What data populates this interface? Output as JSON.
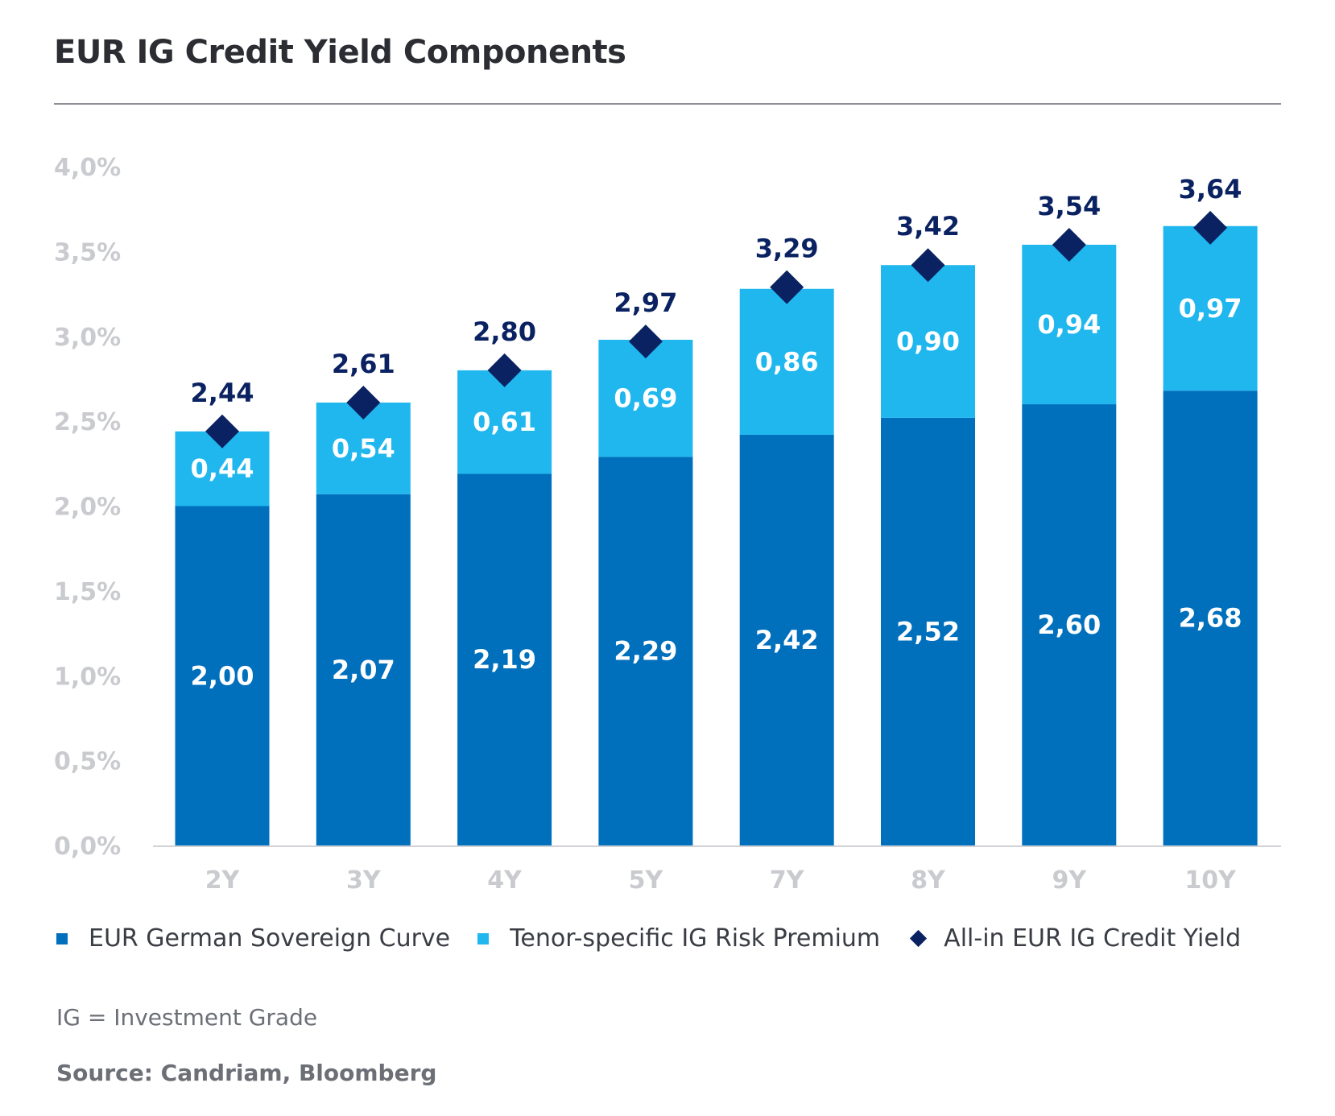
{
  "title": "EUR IG Credit Yield Components",
  "note": "IG = Investment Grade",
  "source": "Source: Candriam, Bloomberg",
  "colors": {
    "sovereign": "#0070bd",
    "premium": "#20b7ef",
    "total": "#0b2262",
    "axis_text": "#c9cbcf",
    "axis_line": "#d0d2d6"
  },
  "legend": {
    "sovereign": "EUR German Sovereign Curve",
    "premium": "Tenor-specific IG Risk Premium",
    "total": "All-in EUR IG Credit Yield"
  },
  "chart_data": {
    "type": "bar",
    "stacked": true,
    "title": "EUR IG Credit Yield Components",
    "xlabel": "",
    "ylabel": "",
    "categories": [
      "2Y",
      "3Y",
      "4Y",
      "5Y",
      "7Y",
      "8Y",
      "9Y",
      "10Y"
    ],
    "ylim": [
      0,
      4.0
    ],
    "yticks": [
      "0,0%",
      "0,5%",
      "1,0%",
      "1,5%",
      "2,0%",
      "2,5%",
      "3,0%",
      "3,5%",
      "4,0%"
    ],
    "series": [
      {
        "name": "EUR German Sovereign Curve",
        "values": [
          2.0,
          2.07,
          2.19,
          2.29,
          2.42,
          2.52,
          2.6,
          2.68
        ],
        "labels": [
          "2,00",
          "2,07",
          "2,19",
          "2,29",
          "2,42",
          "2,52",
          "2,60",
          "2,68"
        ]
      },
      {
        "name": "Tenor-specific IG Risk Premium",
        "values": [
          0.44,
          0.54,
          0.61,
          0.69,
          0.86,
          0.9,
          0.94,
          0.97
        ],
        "labels": [
          "0,44",
          "0,54",
          "0,61",
          "0,69",
          "0,86",
          "0,90",
          "0,94",
          "0,97"
        ]
      },
      {
        "name": "All-in EUR IG Credit Yield",
        "type": "marker",
        "values": [
          2.44,
          2.61,
          2.8,
          2.97,
          3.29,
          3.42,
          3.54,
          3.64
        ],
        "labels": [
          "2,44",
          "2,61",
          "2,80",
          "2,97",
          "3,29",
          "3,42",
          "3,54",
          "3,64"
        ]
      }
    ],
    "legend_position": "bottom",
    "grid": false
  }
}
